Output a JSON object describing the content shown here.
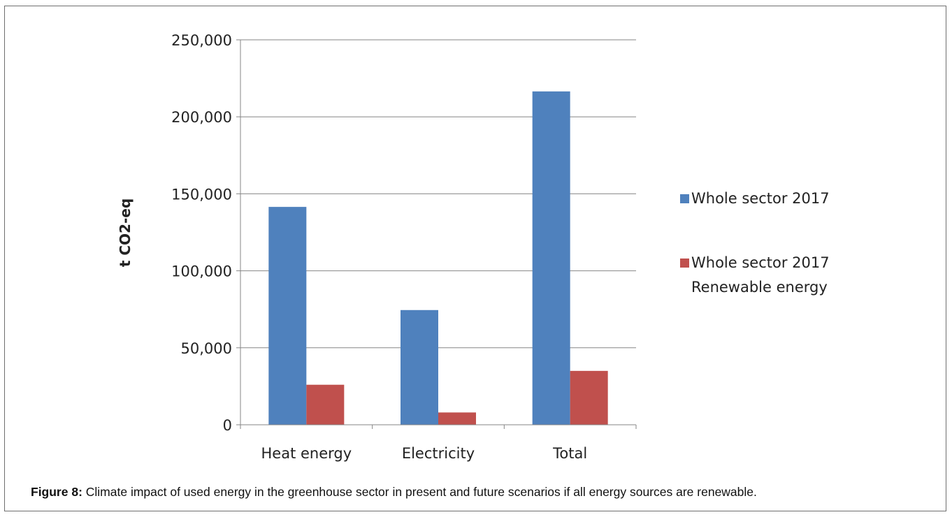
{
  "chart_data": {
    "type": "bar",
    "categories": [
      "Heat energy",
      "Electricity",
      "Total"
    ],
    "series": [
      {
        "name": "Whole sector 2017",
        "values": [
          141500,
          74500,
          216500
        ],
        "color": "#4f81bd"
      },
      {
        "name": "Whole sector 2017 Renewable energy",
        "values": [
          26000,
          8000,
          35000
        ],
        "color": "#c0504d"
      }
    ],
    "legend_lines": [
      [
        "Whole sector 2017"
      ],
      [
        "Whole sector 2017",
        "Renewable energy"
      ]
    ],
    "ylabel": "t CO2-eq",
    "xlabel": "",
    "ylim": [
      0,
      250000
    ],
    "yticks": [
      0,
      50000,
      100000,
      150000,
      200000,
      250000
    ],
    "ytick_labels": [
      "0",
      "50,000",
      "100,000",
      "150,000",
      "200,000",
      "250,000"
    ],
    "grid": true,
    "legend_position": "right"
  },
  "caption": {
    "label": "Figure 8:",
    "text": " Climate impact of used energy in the greenhouse sector in present and future scenarios if all energy sources are renewable."
  }
}
